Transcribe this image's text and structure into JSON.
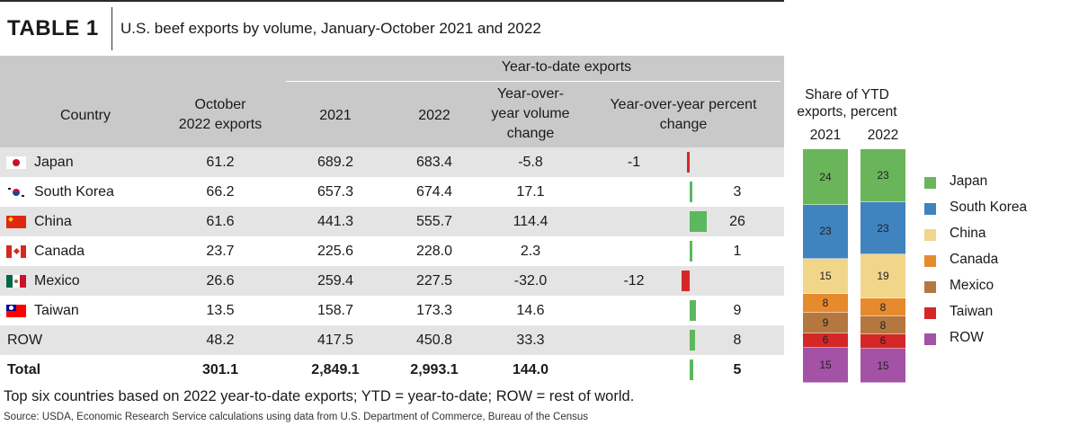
{
  "header": {
    "tag": "TABLE 1",
    "title": "U.S. beef exports by volume, January-October 2021 and 2022"
  },
  "table": {
    "group_header": "Year-to-date exports",
    "columns": {
      "country": "Country",
      "october_line1": "October",
      "october_line2": "2022 exports",
      "y2021": "2021",
      "y2022": "2022",
      "yoy_line1": "Year-over-",
      "yoy_line2": "year volume",
      "yoy_line3": "change",
      "pct_line1": "Year-over-year percent",
      "pct_line2": "change"
    },
    "rows": [
      {
        "country": "Japan",
        "october": "61.2",
        "y2021": "689.2",
        "y2022": "683.4",
        "yoy": "-5.8",
        "pct": "-1",
        "pct_value": -1,
        "flag": "japan"
      },
      {
        "country": "South Korea",
        "october": "66.2",
        "y2021": "657.3",
        "y2022": "674.4",
        "yoy": "17.1",
        "pct": "3",
        "pct_value": 3,
        "flag": "south-korea"
      },
      {
        "country": "China",
        "october": "61.6",
        "y2021": "441.3",
        "y2022": "555.7",
        "yoy": "114.4",
        "pct": "26",
        "pct_value": 26,
        "flag": "china"
      },
      {
        "country": "Canada",
        "october": "23.7",
        "y2021": "225.6",
        "y2022": "228.0",
        "yoy": "2.3",
        "pct": "1",
        "pct_value": 1,
        "flag": "canada"
      },
      {
        "country": "Mexico",
        "october": "26.6",
        "y2021": "259.4",
        "y2022": "227.5",
        "yoy": "-32.0",
        "pct": "-12",
        "pct_value": -12,
        "flag": "mexico"
      },
      {
        "country": "Taiwan",
        "october": "13.5",
        "y2021": "158.7",
        "y2022": "173.3",
        "yoy": "14.6",
        "pct": "9",
        "pct_value": 9,
        "flag": "taiwan"
      },
      {
        "country": "ROW",
        "october": "48.2",
        "y2021": "417.5",
        "y2022": "450.8",
        "yoy": "33.3",
        "pct": "8",
        "pct_value": 8,
        "flag": ""
      },
      {
        "country": "Total",
        "october": "301.1",
        "y2021": "2,849.1",
        "y2022": "2,993.1",
        "yoy": "144.0",
        "pct": "5",
        "pct_value": 5,
        "flag": "",
        "total": true
      }
    ],
    "row_band_colors": [
      "#e4e4e4",
      "#ffffff"
    ],
    "bar_positive_color": "#5cb85c",
    "bar_negative_color": "#d62728"
  },
  "footnote": "Top six countries based on 2022 year-to-date exports; YTD = year-to-date; ROW = rest of world.",
  "source": "Source: USDA, Economic Research Service calculations using data from U.S. Department of Commerce, Bureau of the Census",
  "chart_data": {
    "type": "bar",
    "stacked": true,
    "title_line1": "Share of YTD",
    "title_line2": "exports, percent",
    "categories": [
      "2021",
      "2022"
    ],
    "series": [
      {
        "name": "Japan",
        "color": "#6ab55a",
        "values": [
          24,
          23
        ]
      },
      {
        "name": "South Korea",
        "color": "#3f83bf",
        "values": [
          23,
          23
        ]
      },
      {
        "name": "China",
        "color": "#f1d68a",
        "values": [
          15,
          19
        ]
      },
      {
        "name": "Canada",
        "color": "#e68a2e",
        "values": [
          8,
          8
        ]
      },
      {
        "name": "Mexico",
        "color": "#b4773f",
        "values": [
          9,
          8
        ]
      },
      {
        "name": "Taiwan",
        "color": "#d62728",
        "values": [
          6,
          6
        ]
      },
      {
        "name": "ROW",
        "color": "#a352a6",
        "values": [
          15,
          15
        ]
      }
    ],
    "legend_position": "right"
  }
}
